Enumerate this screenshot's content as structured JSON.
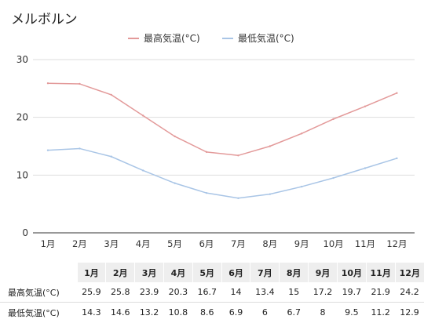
{
  "chart_data": {
    "type": "line",
    "title": "メルボルン",
    "categories": [
      "1月",
      "2月",
      "3月",
      "4月",
      "5月",
      "6月",
      "7月",
      "8月",
      "9月",
      "10月",
      "11月",
      "12月"
    ],
    "series": [
      {
        "name": "最高気温(°C)",
        "color": "#e39a9a",
        "values": [
          25.9,
          25.8,
          23.9,
          20.3,
          16.7,
          14,
          13.4,
          15,
          17.2,
          19.7,
          21.9,
          24.2
        ]
      },
      {
        "name": "最低気温(°C)",
        "color": "#a9c5e6",
        "values": [
          14.3,
          14.6,
          13.2,
          10.8,
          8.6,
          6.9,
          6,
          6.7,
          8,
          9.5,
          11.2,
          12.9
        ]
      }
    ],
    "ylim": [
      0,
      30
    ],
    "yticks": [
      0,
      10,
      20,
      30
    ],
    "grid": true,
    "legend_position": "top-center",
    "xlabel": "",
    "ylabel": ""
  },
  "table": {
    "rows": [
      {
        "label": "最高気温(°C)",
        "values": [
          "25.9",
          "25.8",
          "23.9",
          "20.3",
          "16.7",
          "14",
          "13.4",
          "15",
          "17.2",
          "19.7",
          "21.9",
          "24.2"
        ]
      },
      {
        "label": "最低気温(°C)",
        "values": [
          "14.3",
          "14.6",
          "13.2",
          "10.8",
          "8.6",
          "6.9",
          "6",
          "6.7",
          "8",
          "9.5",
          "11.2",
          "12.9"
        ]
      }
    ]
  }
}
